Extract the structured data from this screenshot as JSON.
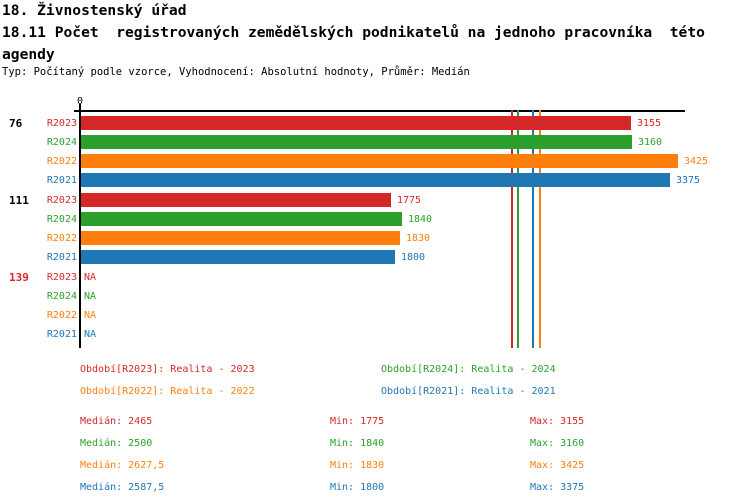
{
  "header": {
    "section_title": "18. Živnostenský úřad",
    "indicator_title_line1": "18.11 Počet  registrovaných zemědělských podnikatelů na jednoho pracovníka  této",
    "indicator_title_line2": "agendy",
    "meta": "Typ: Počítaný podle vzorce, Vyhodnocení: Absolutní hodnoty, Průměr: Medián"
  },
  "chart_data": {
    "type": "bar",
    "orientation": "horizontal",
    "title": "18.11 Počet  registrovaných zemědělských podnikatelů na jednoho pracovníka  této agendy",
    "x_axis": {
      "origin_tick_label": "0",
      "xlim": [
        0,
        3460
      ],
      "grid": false
    },
    "na_text": "NA",
    "series": [
      {
        "id": "R2023",
        "color": "#d62728",
        "legend_label": "Období[R2023]: Realita - 2023",
        "median": 2465,
        "min": 1775,
        "max": 3155,
        "median_display": "2465",
        "min_display": "1775",
        "max_display": "3155"
      },
      {
        "id": "R2024",
        "color": "#2ca02c",
        "legend_label": "Období[R2024]: Realita - 2024",
        "median": 2500,
        "min": 1840,
        "max": 3160,
        "median_display": "2500",
        "min_display": "1840",
        "max_display": "3160"
      },
      {
        "id": "R2022",
        "color": "#ff7f0e",
        "legend_label": "Období[R2022]: Realita - 2022",
        "median": 2627.5,
        "min": 1830,
        "max": 3425,
        "median_display": "2627,5",
        "min_display": "1830",
        "max_display": "3425"
      },
      {
        "id": "R2021",
        "color": "#1f77b4",
        "legend_label": "Období[R2021]: Realita - 2021",
        "median": 2587.5,
        "min": 1800,
        "max": 3375,
        "median_display": "2587,5",
        "min_display": "1800",
        "max_display": "3375"
      }
    ],
    "row_order": [
      "R2023",
      "R2024",
      "R2022",
      "R2021"
    ],
    "groups": [
      {
        "label": "76",
        "label_color": "#000000",
        "values": {
          "R2023": 3155,
          "R2024": 3160,
          "R2022": 3425,
          "R2021": 3375
        },
        "value_labels": {
          "R2023": "3155",
          "R2024": "3160",
          "R2022": "3425",
          "R2021": "3375"
        }
      },
      {
        "label": "111",
        "label_color": "#000000",
        "values": {
          "R2023": 1775,
          "R2024": 1840,
          "R2022": 1830,
          "R2021": 1800
        },
        "value_labels": {
          "R2023": "1775",
          "R2024": "1840",
          "R2022": "1830",
          "R2021": "1800"
        }
      },
      {
        "label": "139",
        "label_color": "#d62728",
        "values": {
          "R2023": null,
          "R2024": null,
          "R2022": null,
          "R2021": null
        },
        "value_labels": {
          "R2023": "NA",
          "R2024": "NA",
          "R2022": "NA",
          "R2021": "NA"
        }
      }
    ],
    "median_lines_shown": true,
    "stats_labels": {
      "median": "Medián",
      "min": "Min",
      "max": "Max"
    }
  }
}
